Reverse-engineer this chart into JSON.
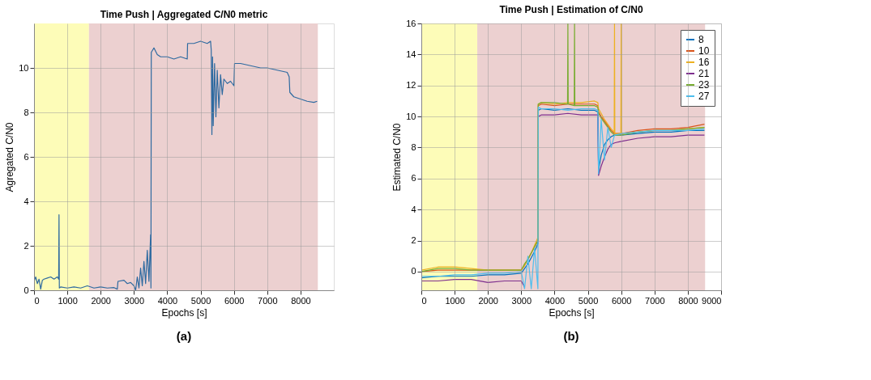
{
  "chart_data": [
    {
      "type": "line",
      "title": "Time Push | Aggregated C/N0 metric",
      "xlabel": "Epochs [s]",
      "ylabel": "Agregated C/N0",
      "xlim": [
        0,
        9000
      ],
      "xticks": [
        0,
        1000,
        2000,
        3000,
        4000,
        5000,
        6000,
        7000,
        8000
      ],
      "ylim": [
        0,
        12
      ],
      "yticks": [
        0,
        2,
        4,
        6,
        8,
        10
      ],
      "grid": true,
      "annotations": [
        "(a)"
      ],
      "bands": [
        {
          "axis": "x",
          "from": 0,
          "to": 1650,
          "color": "#fdfcb8"
        },
        {
          "axis": "x",
          "from": 1650,
          "to": 8520,
          "color": "#ecd0d0"
        }
      ],
      "series": [
        {
          "color": "#2e6aa0",
          "x": [
            0,
            50,
            100,
            150,
            200,
            250,
            300,
            400,
            500,
            600,
            700,
            740,
            750,
            760,
            800,
            1000,
            1200,
            1400,
            1600,
            1800,
            2000,
            2200,
            2400,
            2500,
            2520,
            2700,
            2800,
            2900,
            3000,
            3050,
            3100,
            3150,
            3200,
            3250,
            3300,
            3350,
            3400,
            3450,
            3500,
            3510,
            3520,
            3600,
            3700,
            3800,
            4000,
            4200,
            4400,
            4600,
            4610,
            4800,
            5000,
            5200,
            5300,
            5320,
            5340,
            5360,
            5380,
            5420,
            5460,
            5500,
            5550,
            5600,
            5650,
            5700,
            5800,
            5900,
            6000,
            6020,
            6200,
            6500,
            6800,
            7000,
            7300,
            7600,
            7660,
            7680,
            7800,
            8000,
            8200,
            8400,
            8500
          ],
          "values": [
            0.4,
            0.6,
            0.3,
            0.5,
            0.05,
            0.45,
            0.5,
            0.55,
            0.6,
            0.5,
            0.6,
            0.5,
            3.4,
            0.1,
            0.15,
            0.1,
            0.15,
            0.1,
            0.2,
            0.1,
            0.15,
            0.1,
            0.12,
            0.05,
            0.4,
            0.45,
            0.3,
            0.35,
            0.2,
            0.0,
            0.6,
            0.1,
            1.0,
            0.2,
            1.3,
            0.3,
            1.8,
            0.4,
            2.5,
            0.1,
            10.7,
            10.9,
            10.6,
            10.5,
            10.5,
            10.4,
            10.5,
            10.4,
            11.1,
            11.1,
            11.2,
            11.1,
            11.2,
            10.8,
            7.0,
            10.5,
            7.4,
            10.2,
            7.8,
            9.9,
            8.2,
            9.7,
            8.8,
            9.5,
            9.3,
            9.4,
            9.2,
            10.2,
            10.2,
            10.1,
            10.0,
            10.0,
            9.9,
            9.8,
            9.6,
            8.9,
            8.7,
            8.6,
            8.5,
            8.45,
            8.5
          ]
        }
      ]
    },
    {
      "type": "line",
      "title": "Time Push | Estimation of C/N0",
      "xlabel": "Epochs [s]",
      "ylabel": "Estimated C/N0",
      "xlim": [
        0,
        9000
      ],
      "xticks": [
        0,
        1000,
        2000,
        3000,
        4000,
        5000,
        6000,
        7000,
        8000,
        9000
      ],
      "ylim": [
        -1.2,
        16
      ],
      "yticks": [
        0,
        2,
        4,
        6,
        8,
        10,
        12,
        14,
        16
      ],
      "grid": true,
      "legend": "top right",
      "annotations": [
        "(b)"
      ],
      "bands": [
        {
          "axis": "x",
          "from": 0,
          "to": 1680,
          "color": "#fdfcb8"
        },
        {
          "axis": "x",
          "from": 1680,
          "to": 8520,
          "color": "#ecd0d0"
        }
      ],
      "series": [
        {
          "name": "8",
          "color": "#0072bd",
          "x": [
            0,
            500,
            1000,
            1500,
            2000,
            2500,
            3000,
            3100,
            3200,
            3300,
            3400,
            3500,
            3510,
            3600,
            4000,
            4400,
            4800,
            5200,
            5300,
            5320,
            5400,
            5500,
            5600,
            5700,
            5800,
            6000,
            6500,
            7000,
            7500,
            8000,
            8500
          ],
          "values": [
            -0.4,
            -0.3,
            -0.3,
            -0.3,
            -0.2,
            -0.2,
            -0.1,
            0.2,
            0.5,
            0.9,
            1.3,
            1.8,
            10.4,
            10.5,
            10.4,
            10.5,
            10.4,
            10.4,
            10.3,
            6.5,
            7.5,
            8.2,
            8.5,
            8.7,
            8.8,
            8.8,
            8.9,
            9.0,
            9.0,
            9.1,
            9.1
          ]
        },
        {
          "name": "10",
          "color": "#d95319",
          "x": [
            0,
            500,
            1000,
            1500,
            2000,
            2500,
            3000,
            3100,
            3200,
            3300,
            3400,
            3500,
            3510,
            3600,
            4000,
            4400,
            4800,
            5200,
            5300,
            5320,
            5400,
            5500,
            5600,
            5700,
            5800,
            6000,
            6500,
            7000,
            7500,
            8000,
            8500
          ],
          "values": [
            0.0,
            0.1,
            0.1,
            0.1,
            0.1,
            0.1,
            0.1,
            0.4,
            0.8,
            1.2,
            1.6,
            2.0,
            10.7,
            10.8,
            10.7,
            10.8,
            10.8,
            10.8,
            10.7,
            10.3,
            10.0,
            9.7,
            9.4,
            9.1,
            8.9,
            8.9,
            9.1,
            9.2,
            9.2,
            9.3,
            9.5
          ]
        },
        {
          "name": "16",
          "color": "#edb120",
          "x": [
            0,
            500,
            1000,
            1500,
            2000,
            2500,
            3000,
            3100,
            3200,
            3300,
            3400,
            3500,
            3510,
            3600,
            4000,
            4400,
            4800,
            5200,
            5300,
            5320,
            5400,
            5500,
            5600,
            5700,
            5790,
            5800,
            5810,
            5990,
            6000,
            6010,
            6500,
            7000,
            7500,
            8000,
            8500
          ],
          "values": [
            0.1,
            0.3,
            0.3,
            0.2,
            0.1,
            0.1,
            0.1,
            0.4,
            0.8,
            1.2,
            1.7,
            2.2,
            10.8,
            10.9,
            10.8,
            10.9,
            10.9,
            11.0,
            10.9,
            10.5,
            10.2,
            9.8,
            9.5,
            9.2,
            9.0,
            16,
            8.9,
            8.9,
            16,
            8.9,
            9.0,
            9.1,
            9.1,
            9.2,
            9.3
          ]
        },
        {
          "name": "21",
          "color": "#7e2f8e",
          "x": [
            0,
            500,
            1000,
            1500,
            2000,
            2500,
            3000,
            3100,
            3200,
            3300,
            3400,
            3500,
            3510,
            3600,
            4000,
            4400,
            4800,
            5200,
            5300,
            5320,
            5400,
            5500,
            5600,
            5700,
            5800,
            6000,
            6500,
            7000,
            7500,
            8000,
            8500
          ],
          "values": [
            -0.6,
            -0.6,
            -0.5,
            -0.5,
            -0.7,
            -0.6,
            -0.6,
            -1.0,
            null,
            null,
            null,
            null,
            10.0,
            10.1,
            10.1,
            10.2,
            10.1,
            10.1,
            10.1,
            6.2,
            6.8,
            7.4,
            7.9,
            8.2,
            8.3,
            8.4,
            8.6,
            8.7,
            8.7,
            8.8,
            8.8
          ]
        },
        {
          "name": "23",
          "color": "#77ac30",
          "x": [
            0,
            500,
            1000,
            1500,
            2000,
            2500,
            3000,
            3100,
            3200,
            3300,
            3400,
            3500,
            3510,
            3600,
            4000,
            4390,
            4400,
            4410,
            4590,
            4600,
            4610,
            4800,
            5200,
            5300,
            5320,
            5400,
            5500,
            5600,
            5700,
            5800,
            6000,
            6500,
            7000,
            7500,
            8000,
            8500
          ],
          "values": [
            0.0,
            0.2,
            0.2,
            0.1,
            0.1,
            0.1,
            0.1,
            0.5,
            0.8,
            1.2,
            1.6,
            2.0,
            10.8,
            10.9,
            10.9,
            10.8,
            16,
            10.8,
            10.7,
            16,
            10.7,
            10.7,
            10.7,
            10.6,
            10.2,
            9.9,
            9.6,
            9.3,
            9.0,
            8.8,
            8.8,
            9.0,
            9.1,
            9.1,
            9.2,
            9.3
          ]
        },
        {
          "name": "27",
          "color": "#4dbeee",
          "x": [
            0,
            500,
            1000,
            1500,
            2000,
            2500,
            3000,
            3100,
            3200,
            3300,
            3400,
            3500,
            3510,
            3600,
            4000,
            4400,
            4800,
            5200,
            5300,
            5320,
            5400,
            5500,
            5600,
            5700,
            5800,
            6000,
            6500,
            7000,
            7500,
            8000,
            8500
          ],
          "values": [
            -0.3,
            -0.3,
            -0.2,
            -0.2,
            -0.1,
            -0.1,
            0.0,
            -1.1,
            1.0,
            -1.1,
            1.5,
            -1.1,
            10.6,
            10.5,
            10.5,
            10.4,
            10.5,
            10.5,
            10.4,
            6.3,
            9.8,
            7.2,
            9.3,
            8.0,
            8.8,
            8.9,
            9.0,
            9.1,
            9.1,
            9.1,
            9.2
          ]
        }
      ]
    }
  ]
}
